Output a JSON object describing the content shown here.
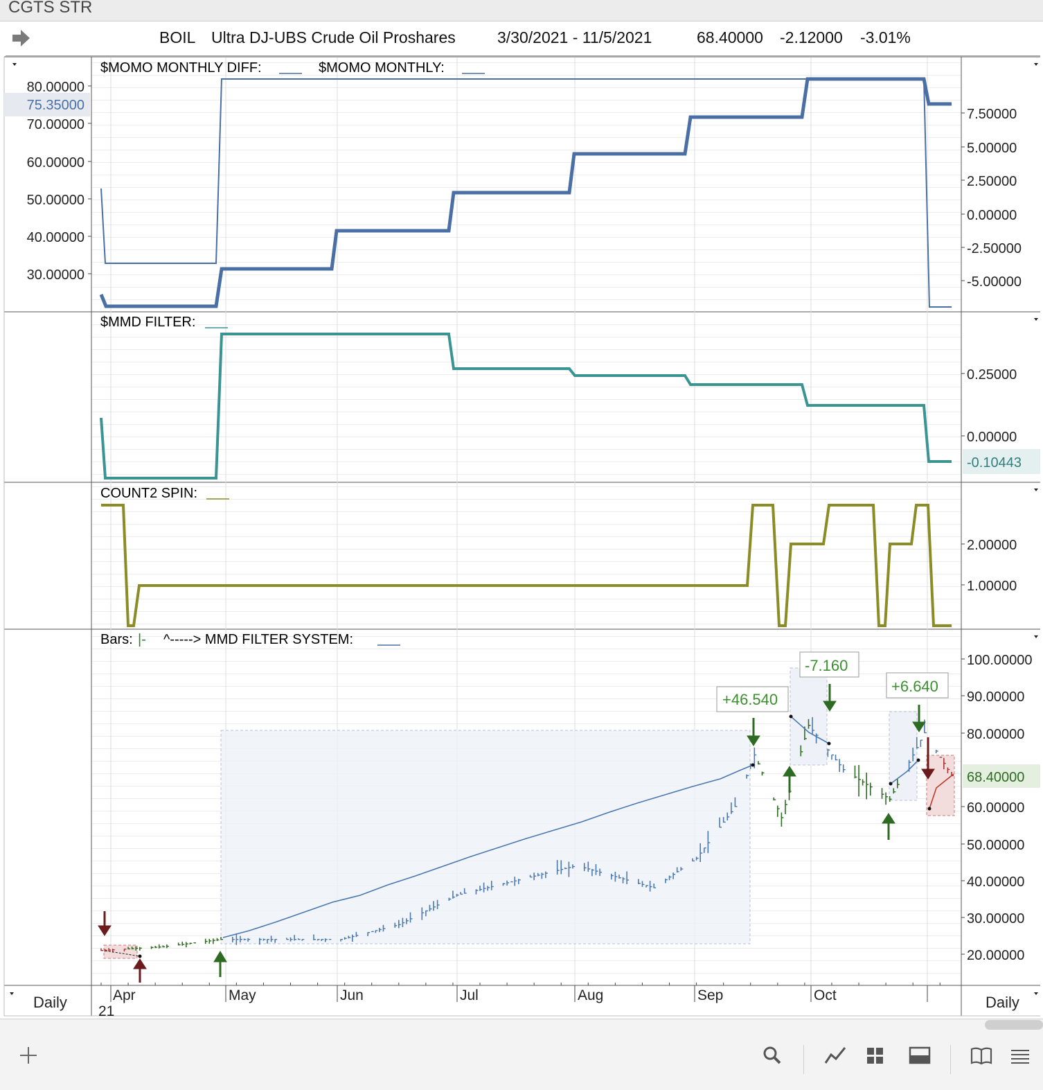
{
  "window": {
    "title": "CGTS STR"
  },
  "header": {
    "symbol": "BOIL",
    "name": "Ultra DJ-UBS Crude Oil Proshares",
    "date_range": "3/30/2021 - 11/5/2021",
    "last": "68.40000",
    "change": "-2.12000",
    "change_pct": "-3.01%"
  },
  "panels": {
    "momo": {
      "label1": "$MOMO MONTHLY DIFF:",
      "label2": "$MOMO MONTHLY:",
      "current_left": "75.35000",
      "left_ticks": [
        "80.00000",
        "70.00000",
        "60.00000",
        "50.00000",
        "40.00000",
        "30.00000"
      ],
      "right_ticks": [
        "7.50000",
        "5.00000",
        "2.50000",
        "0.00000",
        "-2.50000",
        "-5.00000"
      ]
    },
    "mmd": {
      "label": "$MMD FILTER:",
      "current": "-0.10443",
      "right_ticks": [
        "0.25000",
        "0.00000"
      ]
    },
    "count2": {
      "label": "COUNT2 SPIN:",
      "right_ticks": [
        "2.00000",
        "1.00000"
      ]
    },
    "bars": {
      "label1": "Bars:",
      "label1_glyph": "|-",
      "label2": "^-----> MMD FILTER SYSTEM:",
      "current": "68.40000",
      "right_ticks": [
        "100.00000",
        "90.00000",
        "80.00000",
        "60.00000",
        "50.00000",
        "40.00000",
        "30.00000",
        "20.00000"
      ],
      "trade_labels": [
        "+46.540",
        "-7.160",
        "+6.640"
      ]
    }
  },
  "xaxis": {
    "months": [
      "Apr",
      "May",
      "Jun",
      "Jul",
      "Aug",
      "Sep",
      "Oct"
    ],
    "year": "21",
    "period_left": "Daily",
    "period_right": "Daily"
  },
  "chart_data": [
    {
      "type": "line",
      "title": "$MOMO MONTHLY DIFF / $MOMO MONTHLY",
      "x": [
        "2021-03-30",
        "2021-04-30",
        "2021-05-28",
        "2021-06-29",
        "2021-07-30",
        "2021-08-30",
        "2021-09-29",
        "2021-11-01",
        "2021-11-05"
      ],
      "series": [
        {
          "name": "$MOMO MONTHLY",
          "values": [
            22,
            32,
            42,
            52,
            62,
            72,
            82,
            82,
            76
          ]
        },
        {
          "name": "$MOMO MONTHLY DIFF",
          "values": [
            -6.5,
            10,
            10,
            10,
            10,
            10,
            10,
            10,
            -7
          ]
        }
      ]
    },
    {
      "type": "line",
      "title": "$MMD FILTER",
      "x": [
        "2021-03-30",
        "2021-04-30",
        "2021-06-29",
        "2021-07-30",
        "2021-08-30",
        "2021-09-29",
        "2021-11-01",
        "2021-11-05"
      ],
      "series": [
        {
          "name": "$MMD FILTER",
          "values": [
            -0.14,
            0.42,
            0.27,
            0.25,
            0.22,
            0.13,
            -0.1,
            -0.10443
          ]
        }
      ]
    },
    {
      "type": "line",
      "title": "COUNT2 SPIN",
      "series": [
        {
          "name": "COUNT2 SPIN",
          "values": [
            3,
            0,
            1,
            1,
            3,
            0,
            2,
            3,
            0,
            2,
            3,
            0
          ]
        }
      ]
    },
    {
      "type": "bar",
      "title": "Bars",
      "ylim": [
        15,
        105
      ],
      "price_approx": [
        {
          "date": "2021-03-30",
          "close": 21
        },
        {
          "date": "2021-04-15",
          "close": 22
        },
        {
          "date": "2021-04-30",
          "close": 24
        },
        {
          "date": "2021-05-31",
          "close": 24
        },
        {
          "date": "2021-06-15",
          "close": 28
        },
        {
          "date": "2021-06-30",
          "close": 36
        },
        {
          "date": "2021-07-31",
          "close": 44
        },
        {
          "date": "2021-08-20",
          "close": 38
        },
        {
          "date": "2021-08-31",
          "close": 46
        },
        {
          "date": "2021-09-10",
          "close": 60
        },
        {
          "date": "2021-09-15",
          "close": 74
        },
        {
          "date": "2021-09-22",
          "close": 57
        },
        {
          "date": "2021-09-29",
          "close": 82
        },
        {
          "date": "2021-10-08",
          "close": 70
        },
        {
          "date": "2021-10-20",
          "close": 62
        },
        {
          "date": "2021-10-29",
          "close": 80
        },
        {
          "date": "2021-11-05",
          "close": 68.4
        }
      ],
      "trades": [
        {
          "label": "+46.540",
          "result": 46.54
        },
        {
          "label": "-7.160",
          "result": -7.16
        },
        {
          "label": "+6.640",
          "result": 6.64
        }
      ]
    }
  ],
  "toolbar": {
    "icons": [
      "plus-icon",
      "search-icon",
      "line-chart-icon",
      "grid-icon",
      "panel-icon",
      "book-icon",
      "menu-icon"
    ]
  }
}
